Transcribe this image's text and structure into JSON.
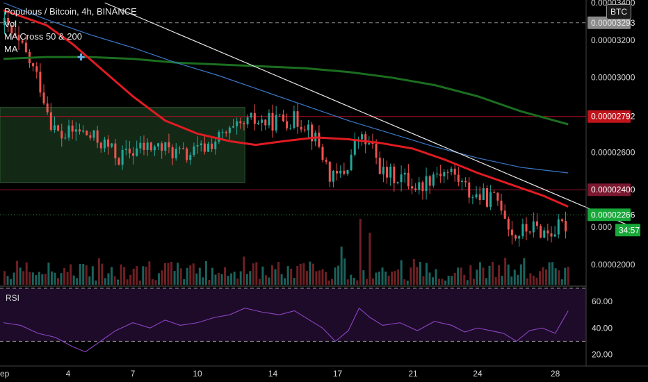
{
  "header": {
    "title": "Populous / Bitcoin, 4h, BINANCE",
    "indicators": [
      "Vol",
      "MA Cross 50 & 200",
      "MA"
    ],
    "currency_button": "BTC"
  },
  "rsi_panel": {
    "label": "RSI",
    "ticks": [
      "60.00",
      "40.00",
      "20.00"
    ]
  },
  "colors": {
    "up": "#26a69a",
    "down": "#ef5350",
    "ma_red": "#e01b22",
    "ma_green": "#1b6e1f",
    "ma_blue": "#3a78c9",
    "trendline": "#e8e8e8",
    "rsi_line": "#8e44c4",
    "rsi_band": "#2a0f3a",
    "zone": "#16301a"
  },
  "chart_data": {
    "type": "candlestick",
    "x_tick_labels": [
      "ep",
      "4",
      "7",
      "10",
      "14",
      "17",
      "21",
      "24",
      "28"
    ],
    "y_tick_labels": [
      "0.00003400",
      "0.00003200",
      "0.00003000",
      "0.00002600",
      "0.00002000"
    ],
    "price_labels": [
      {
        "text": "0.00003293",
        "value": 3.293e-05,
        "style": "gray"
      },
      {
        "text": "0.00002792",
        "value": 2.792e-05,
        "style": "red"
      },
      {
        "text": "0.00002400",
        "value": 2.4e-05,
        "style": "darkred"
      },
      {
        "text": "0.00002266",
        "value": 2.266e-05,
        "style": "green"
      }
    ],
    "countdown": "34:57",
    "price_axis_partial": "0.000",
    "ylim": [
      1.9e-05,
      3.4e-05
    ],
    "horizontal_lines": [
      2.792e-05,
      2.4e-05
    ],
    "dashed_lines": [
      3.293e-05
    ],
    "dotted_line": 2.266e-05,
    "support_zone": {
      "from_x": "ep",
      "to_x": "13",
      "low": 2.44e-05,
      "high": 2.84e-05
    },
    "ma_50": [
      [
        0,
        3.36e-05
      ],
      [
        2,
        3.28e-05
      ],
      [
        3.2,
        3.18e-05
      ],
      [
        4.5,
        3.05e-05
      ],
      [
        6,
        2.9e-05
      ],
      [
        7.5,
        2.77e-05
      ],
      [
        9,
        2.7e-05
      ],
      [
        10.5,
        2.66e-05
      ],
      [
        11.7,
        2.64e-05
      ],
      [
        13,
        2.66e-05
      ],
      [
        14.5,
        2.68e-05
      ],
      [
        16,
        2.67e-05
      ],
      [
        17.5,
        2.65e-05
      ],
      [
        19,
        2.62e-05
      ],
      [
        20.5,
        2.56e-05
      ],
      [
        22,
        2.49e-05
      ],
      [
        23.5,
        2.43e-05
      ],
      [
        25,
        2.37e-05
      ],
      [
        26.2,
        2.31e-05
      ]
    ],
    "ma_200": [
      [
        0,
        3.1e-05
      ],
      [
        2,
        3.11e-05
      ],
      [
        4,
        3.11e-05
      ],
      [
        6,
        3.1e-05
      ],
      [
        8,
        3.08e-05
      ],
      [
        10,
        3.07e-05
      ],
      [
        12,
        3.06e-05
      ],
      [
        14,
        3.05e-05
      ],
      [
        16,
        3.03e-05
      ],
      [
        18,
        3e-05
      ],
      [
        20,
        2.96e-05
      ],
      [
        22,
        2.9e-05
      ],
      [
        24,
        2.82e-05
      ],
      [
        26.2,
        2.75e-05
      ]
    ],
    "ma_blue": [
      [
        0,
        3.4e-05
      ],
      [
        2,
        3.31e-05
      ],
      [
        4,
        3.23e-05
      ],
      [
        6,
        3.16e-05
      ],
      [
        8,
        3.08e-05
      ],
      [
        10,
        3.01e-05
      ],
      [
        12,
        2.93e-05
      ],
      [
        14,
        2.85e-05
      ],
      [
        16,
        2.77e-05
      ],
      [
        18,
        2.7e-05
      ],
      [
        20,
        2.63e-05
      ],
      [
        22,
        2.57e-05
      ],
      [
        24,
        2.52e-05
      ],
      [
        26.2,
        2.49e-05
      ]
    ],
    "trendline": [
      [
        4.7,
        3.4e-05
      ],
      [
        29.2,
        2.2e-05
      ]
    ],
    "cross_marker": [
      3.6,
      3.11e-05
    ],
    "candle_anchors": [
      [
        0,
        3.28e-05
      ],
      [
        1,
        3.12e-05
      ],
      [
        1.6,
        2.98e-05
      ],
      [
        2.2,
        2.75e-05
      ],
      [
        2.6,
        2.68e-05
      ],
      [
        3.4,
        2.72e-05
      ],
      [
        4,
        2.68e-05
      ],
      [
        4.7,
        2.64e-05
      ],
      [
        5.3,
        2.57e-05
      ],
      [
        6.2,
        2.62e-05
      ],
      [
        7,
        2.63e-05
      ],
      [
        7.7,
        2.61e-05
      ],
      [
        8.4,
        2.58e-05
      ],
      [
        9.2,
        2.62e-05
      ],
      [
        10,
        2.68e-05
      ],
      [
        10.8,
        2.72e-05
      ],
      [
        11.5,
        2.77e-05
      ],
      [
        12.2,
        2.76e-05
      ],
      [
        13,
        2.78e-05
      ],
      [
        14,
        2.76e-05
      ],
      [
        14.6,
        2.63e-05
      ],
      [
        15.2,
        2.45e-05
      ],
      [
        15.8,
        2.5e-05
      ],
      [
        16.4,
        2.68e-05
      ],
      [
        17,
        2.63e-05
      ],
      [
        17.6,
        2.48e-05
      ],
      [
        18.4,
        2.47e-05
      ],
      [
        19.2,
        2.41e-05
      ],
      [
        20,
        2.5e-05
      ],
      [
        20.8,
        2.49e-05
      ],
      [
        21.6,
        2.38e-05
      ],
      [
        22.2,
        2.36e-05
      ],
      [
        23,
        2.34e-05
      ],
      [
        23.6,
        2.15e-05
      ],
      [
        24.4,
        2.2e-05
      ],
      [
        25.2,
        2.17e-05
      ],
      [
        26.2,
        2.22e-05
      ]
    ],
    "volume_spikes": [
      [
        16.5,
        0.95
      ],
      [
        16.9,
        0.75
      ],
      [
        15.7,
        0.55
      ],
      [
        18.3,
        0.22
      ]
    ],
    "rsi": {
      "ylim": [
        15,
        70
      ],
      "overbought": 70,
      "oversold": 30,
      "ticks": [
        60,
        40,
        20
      ],
      "points": [
        [
          0,
          44
        ],
        [
          0.8,
          42
        ],
        [
          1.6,
          36
        ],
        [
          2.4,
          33
        ],
        [
          3.2,
          26
        ],
        [
          3.8,
          22
        ],
        [
          4.5,
          30
        ],
        [
          5.2,
          38
        ],
        [
          6,
          44
        ],
        [
          6.8,
          40
        ],
        [
          7.5,
          46
        ],
        [
          8.2,
          42
        ],
        [
          9,
          44
        ],
        [
          9.8,
          48
        ],
        [
          10.5,
          50
        ],
        [
          11.2,
          55
        ],
        [
          12,
          52
        ],
        [
          12.8,
          50
        ],
        [
          13.5,
          53
        ],
        [
          14.2,
          46
        ],
        [
          14.8,
          40
        ],
        [
          15.4,
          30
        ],
        [
          16,
          38
        ],
        [
          16.5,
          55
        ],
        [
          17,
          48
        ],
        [
          17.6,
          42
        ],
        [
          18.4,
          44
        ],
        [
          19.2,
          38
        ],
        [
          20,
          45
        ],
        [
          20.8,
          42
        ],
        [
          21.4,
          37
        ],
        [
          22,
          40
        ],
        [
          22.6,
          38
        ],
        [
          23.2,
          36
        ],
        [
          23.8,
          30
        ],
        [
          24.4,
          38
        ],
        [
          25,
          40
        ],
        [
          25.6,
          36
        ],
        [
          26.2,
          53
        ]
      ]
    }
  }
}
